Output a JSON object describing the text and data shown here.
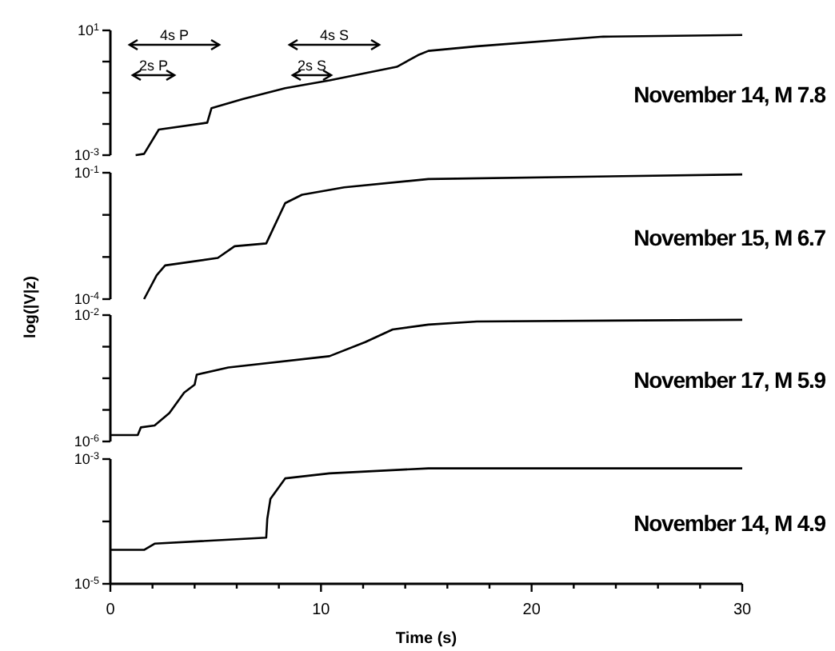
{
  "chart_data": [
    {
      "type": "line",
      "log": "y",
      "tick_labels": "y",
      "xlim": [
        0,
        30
      ],
      "ylim": [
        0.001,
        10
      ],
      "yticks": [
        {
          "value": 0.001,
          "label": "10$^{-3}$"
        },
        {
          "value": 0.01,
          "label": null
        },
        {
          "value": 0.1,
          "label": null
        },
        {
          "value": 1,
          "label": null
        },
        {
          "value": 10,
          "label": "10$^{1}$"
        }
      ],
      "annotations": [
        "November 14, M 7.8",
        "4s P",
        "2s P",
        "4s S",
        "2s S"
      ],
      "series": [
        {
          "color": "#000000",
          "x": [
            1.2,
            1.6,
            2.3,
            4.6,
            4.8,
            6.3,
            8.3,
            10.4,
            13.6,
            14.6,
            15.1,
            17.4,
            23.4,
            30
          ],
          "values": [
            0.001,
            0.0011,
            0.0066,
            0.011,
            0.032,
            0.063,
            0.14,
            0.25,
            0.68,
            1.6,
            2.2,
            3.1,
            6.3,
            7.1
          ]
        }
      ]
    },
    {
      "type": "line",
      "log": "y",
      "tick_labels": "y",
      "xlim": [
        0,
        30
      ],
      "ylim": [
        0.0001,
        0.1
      ],
      "yticks": [
        {
          "value": 0.0001,
          "label": "10$^{-4}$"
        },
        {
          "value": 0.001,
          "label": null
        },
        {
          "value": 0.01,
          "label": null
        },
        {
          "value": 0.1,
          "label": "10$^{-1}$"
        }
      ],
      "annotations": [
        "November 15, M 6.7"
      ],
      "series": [
        {
          "color": "#000000",
          "x": [
            1.6,
            2.2,
            2.6,
            5.1,
            5.9,
            7.4,
            8.3,
            9.1,
            11.1,
            15.1,
            30
          ],
          "values": [
            0.0001,
            0.00037,
            0.00063,
            0.00095,
            0.0018,
            0.0021,
            0.019,
            0.03,
            0.045,
            0.071,
            0.091
          ]
        }
      ]
    },
    {
      "type": "line",
      "log": "y",
      "tick_labels": "y",
      "xlim": [
        0,
        30
      ],
      "ylim": [
        1e-06,
        0.01
      ],
      "yticks": [
        {
          "value": 1e-06,
          "label": "10$^{-6}$"
        },
        {
          "value": 1e-05,
          "label": null
        },
        {
          "value": 0.0001,
          "label": null
        },
        {
          "value": 0.001,
          "label": null
        },
        {
          "value": 0.01,
          "label": "10$^{-2}$"
        }
      ],
      "annotations": [
        "November 17, M 5.9"
      ],
      "series": [
        {
          "color": "#000000",
          "x": [
            0,
            1.3,
            1.45,
            2.1,
            2.8,
            3.5,
            4.0,
            4.1,
            5.6,
            10.4,
            12.1,
            13.4,
            15.1,
            17.4,
            30
          ],
          "values": [
            1.6e-06,
            1.6e-06,
            2.8e-06,
            3.2e-06,
            7.9e-06,
            3.5e-05,
            6.3e-05,
            0.00013,
            0.00022,
            0.0005,
            0.0014,
            0.0035,
            0.005,
            0.0063,
            0.0071
          ]
        }
      ]
    },
    {
      "type": "line",
      "log": "y",
      "xlabel": "Time (s)",
      "ylabel": "log(|V|z)",
      "xlim": [
        0,
        30
      ],
      "xticks": [
        0,
        {
          "value": 2,
          "label": null
        },
        {
          "value": 4,
          "label": null
        },
        {
          "value": 6,
          "label": null
        },
        {
          "value": 8,
          "label": null
        },
        10,
        {
          "value": 12,
          "label": null
        },
        {
          "value": 14,
          "label": null
        },
        {
          "value": 16,
          "label": null
        },
        {
          "value": 18,
          "label": null
        },
        20,
        {
          "value": 22,
          "label": null
        },
        {
          "value": 24,
          "label": null
        },
        {
          "value": 26,
          "label": null
        },
        {
          "value": 28,
          "label": null
        },
        30
      ],
      "ylim": [
        1e-05,
        0.001
      ],
      "yticks": [
        {
          "value": 1e-05,
          "label": "10$^{-5}$"
        },
        {
          "value": 0.0001,
          "label": null
        },
        {
          "value": 0.001,
          "label": "10$^{-3}$"
        }
      ],
      "annotations": [
        "November 14, M 4.9"
      ],
      "series": [
        {
          "color": "#000000",
          "x": [
            0,
            1.6,
            2.1,
            7.4,
            7.45,
            7.6,
            8.3,
            10.4,
            15.1,
            30
          ],
          "values": [
            3.5e-05,
            3.5e-05,
            4.4e-05,
            5.5e-05,
            0.00011,
            0.00023,
            0.00049,
            0.00059,
            0.00071,
            0.00071
          ]
        }
      ]
    }
  ]
}
